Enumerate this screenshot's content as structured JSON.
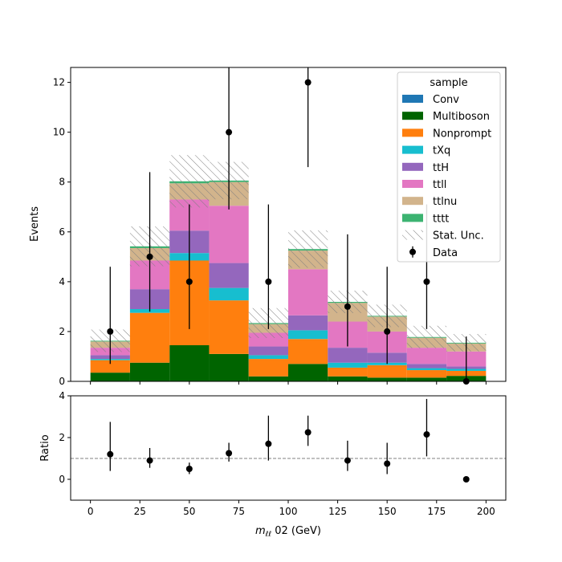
{
  "chart_data": {
    "type": "bar",
    "stacked": true,
    "bin_edges": [
      0,
      20,
      40,
      60,
      80,
      100,
      120,
      140,
      160,
      180,
      200
    ],
    "main": {
      "ylabel": "Events",
      "ylim": [
        0,
        12.6
      ],
      "yticks": [
        0,
        2,
        4,
        6,
        8,
        10,
        12
      ]
    },
    "ratio": {
      "ylabel": "Ratio",
      "ylim": [
        -1,
        4
      ],
      "yticks": [
        0,
        2,
        4
      ],
      "reference_line": 1
    },
    "xlabel_main": "m",
    "xlabel_sub": "ℓℓ",
    "xlabel_rest": " 02 (GeV)",
    "xticks": [
      0,
      25,
      50,
      75,
      100,
      125,
      150,
      175,
      200
    ],
    "legend": {
      "title": "sample",
      "position": "top-right",
      "stat_label": "Stat. Unc.",
      "data_label": "Data"
    },
    "series": [
      {
        "name": "Conv",
        "color": "#1f77b4",
        "values": [
          0,
          0,
          0,
          0,
          0,
          0,
          0,
          0,
          0,
          0
        ]
      },
      {
        "name": "Multiboson",
        "color": "#006400",
        "values": [
          0.35,
          0.75,
          1.45,
          1.1,
          0.2,
          0.7,
          0.2,
          0.15,
          0.15,
          0.22
        ]
      },
      {
        "name": "Nonprompt",
        "color": "#ff7f0e",
        "values": [
          0.5,
          2.0,
          3.4,
          2.15,
          0.7,
          1.0,
          0.35,
          0.5,
          0.3,
          0.2
        ]
      },
      {
        "name": "tXq",
        "color": "#17becf",
        "values": [
          0.05,
          0.15,
          0.3,
          0.5,
          0.15,
          0.35,
          0.2,
          0.1,
          0.08,
          0.08
        ]
      },
      {
        "name": "ttH",
        "color": "#9467bd",
        "values": [
          0.15,
          0.8,
          0.9,
          1.0,
          0.35,
          0.6,
          0.6,
          0.4,
          0.17,
          0.1
        ]
      },
      {
        "name": "ttll",
        "color": "#e377c2",
        "values": [
          0.3,
          1.15,
          1.25,
          2.3,
          0.55,
          1.85,
          1.05,
          0.85,
          0.65,
          0.6
        ]
      },
      {
        "name": "ttlnu",
        "color": "#d2b48c",
        "values": [
          0.25,
          0.5,
          0.65,
          0.95,
          0.35,
          0.75,
          0.75,
          0.6,
          0.4,
          0.32
        ]
      },
      {
        "name": "tttt",
        "color": "#3cb371",
        "values": [
          0.03,
          0.07,
          0.08,
          0.06,
          0.04,
          0.06,
          0.04,
          0.03,
          0.03,
          0.03
        ]
      }
    ],
    "stat_unc": [
      0.45,
      0.8,
      1.05,
      0.75,
      0.6,
      0.75,
      0.45,
      0.45,
      0.45,
      0.35
    ],
    "data": {
      "x": [
        10,
        30,
        50,
        70,
        90,
        110,
        130,
        150,
        170,
        190
      ],
      "y": [
        2,
        5,
        4,
        10,
        4,
        12,
        3,
        2,
        4,
        0
      ],
      "err_low": [
        1.3,
        2.2,
        1.9,
        3.1,
        1.9,
        3.4,
        1.6,
        1.3,
        1.9,
        0
      ],
      "err_high": [
        2.6,
        3.4,
        3.1,
        4.3,
        3.1,
        4.5,
        2.9,
        2.6,
        3.1,
        1.8
      ]
    },
    "ratio_points": {
      "x": [
        10,
        30,
        50,
        70,
        90,
        110,
        130,
        150,
        170,
        190
      ],
      "y": [
        1.2,
        0.9,
        0.5,
        1.25,
        1.7,
        2.25,
        0.9,
        0.75,
        2.15,
        0
      ],
      "err_low": [
        0.8,
        0.35,
        0.25,
        0.4,
        0.8,
        0.65,
        0.5,
        0.5,
        1.05,
        0
      ],
      "err_high": [
        1.55,
        0.6,
        0.3,
        0.5,
        1.35,
        0.8,
        0.95,
        1.0,
        1.7,
        0
      ]
    }
  }
}
